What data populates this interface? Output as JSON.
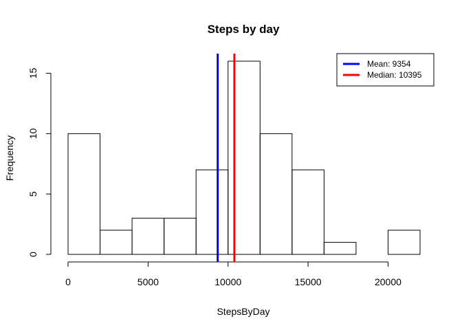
{
  "chart_data": {
    "type": "bar",
    "title": "Steps by day",
    "xlabel": "StepsByDay",
    "ylabel": "Frequency",
    "bins": [
      {
        "start": 0,
        "end": 2000,
        "count": 10
      },
      {
        "start": 2000,
        "end": 4000,
        "count": 2
      },
      {
        "start": 4000,
        "end": 6000,
        "count": 3
      },
      {
        "start": 6000,
        "end": 8000,
        "count": 3
      },
      {
        "start": 8000,
        "end": 10000,
        "count": 7
      },
      {
        "start": 10000,
        "end": 12000,
        "count": 16
      },
      {
        "start": 12000,
        "end": 14000,
        "count": 10
      },
      {
        "start": 14000,
        "end": 16000,
        "count": 7
      },
      {
        "start": 16000,
        "end": 18000,
        "count": 1
      },
      {
        "start": 18000,
        "end": 20000,
        "count": 0
      },
      {
        "start": 20000,
        "end": 22000,
        "count": 2
      }
    ],
    "xlim": [
      0,
      22000
    ],
    "ylim": [
      0,
      16
    ],
    "x_ticks": [
      0,
      5000,
      10000,
      15000,
      20000
    ],
    "x_tick_labels": [
      "0",
      "5000",
      "10000",
      "15000",
      "20000"
    ],
    "y_ticks": [
      0,
      5,
      10,
      15
    ],
    "y_tick_labels": [
      "0",
      "5",
      "10",
      "15"
    ],
    "vlines": [
      {
        "value": 9354,
        "color": "#0000ff",
        "label": "Mean:  9354"
      },
      {
        "value": 10395,
        "color": "#ff0000",
        "label": "Median:  10395"
      }
    ],
    "legend_position": "top-right",
    "grid": false
  }
}
